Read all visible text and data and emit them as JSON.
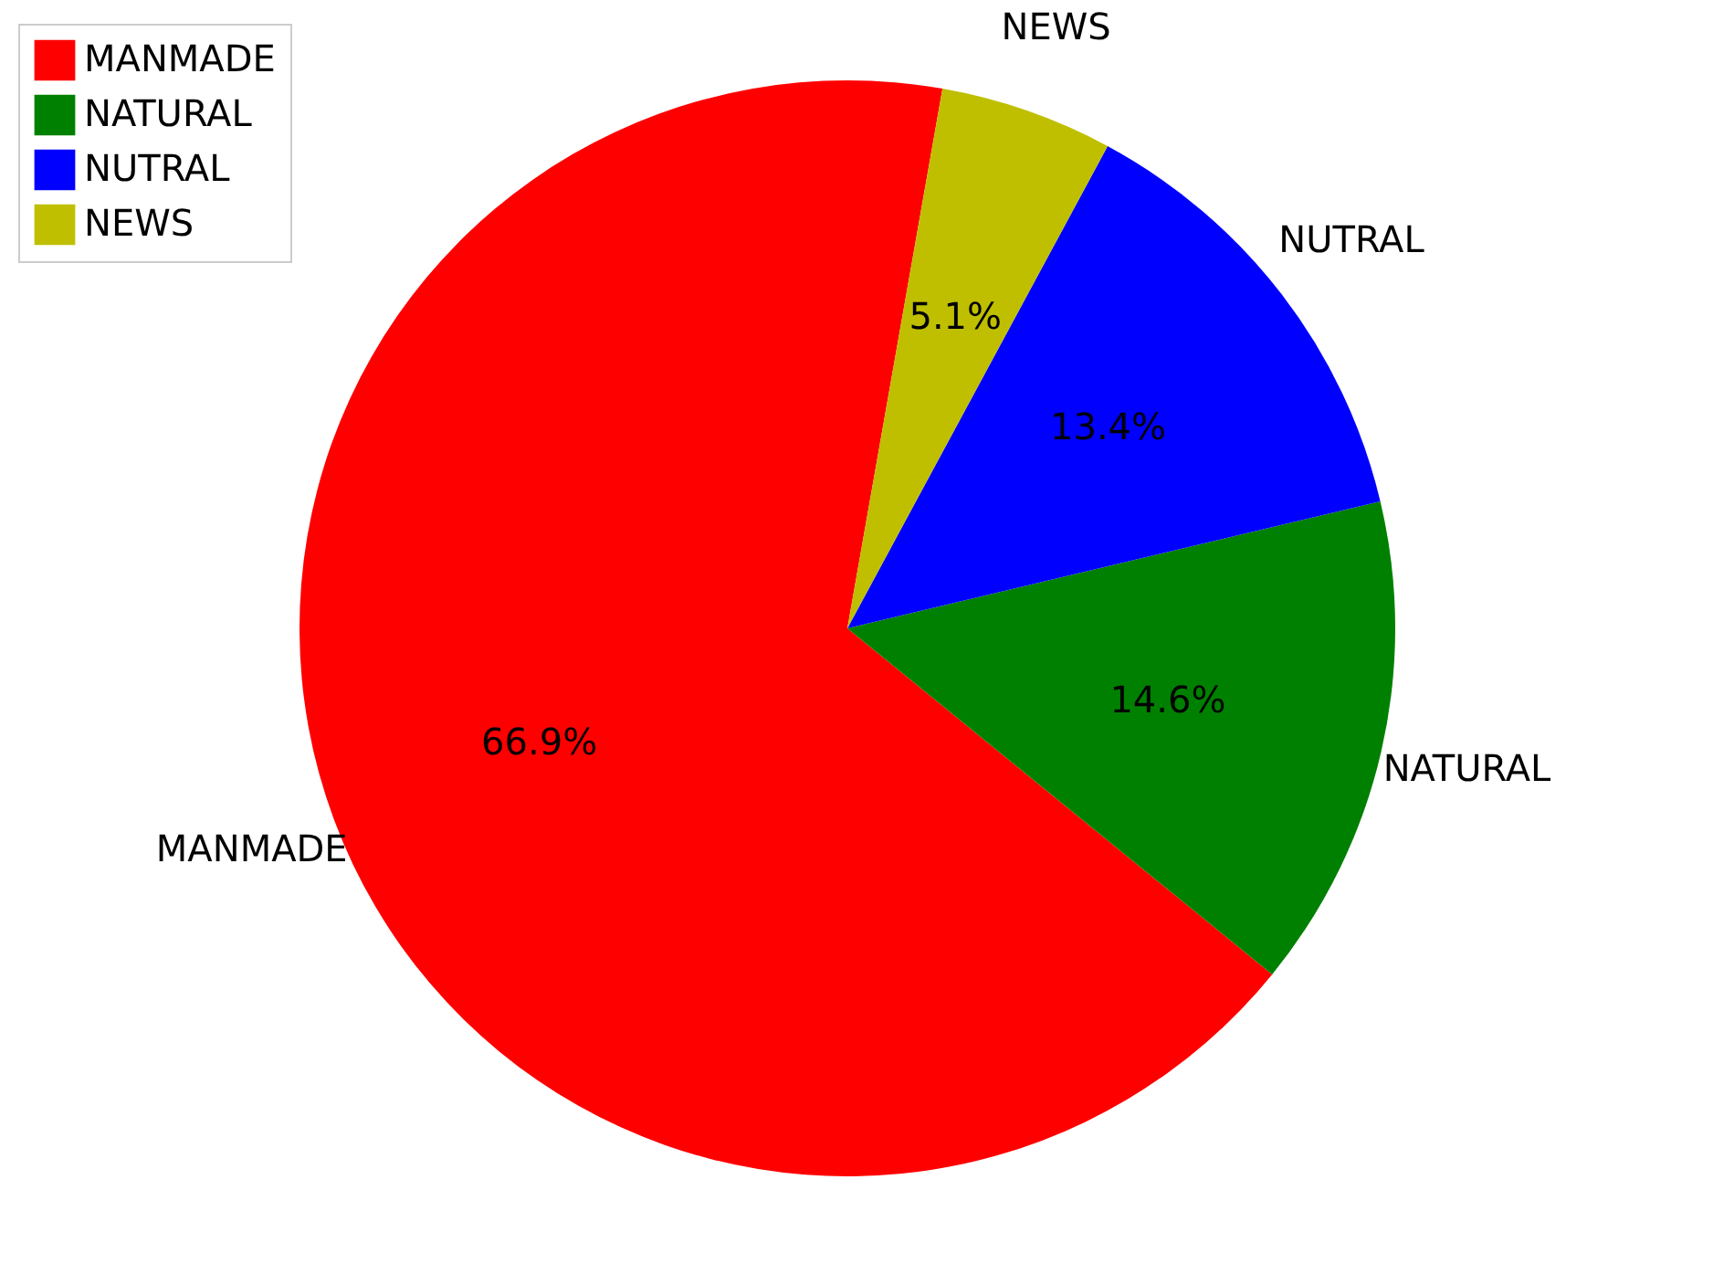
{
  "chart_data": {
    "type": "pie",
    "categories": [
      "MANMADE",
      "NATURAL",
      "NUTRAL",
      "NEWS"
    ],
    "values": [
      66.9,
      14.6,
      13.4,
      5.1
    ],
    "value_labels": [
      "66.9%",
      "14.6%",
      "13.4%",
      "5.1%"
    ],
    "colors": [
      "#ff0000",
      "#008000",
      "#0000ff",
      "#bfbf00"
    ],
    "legend": "top left"
  }
}
